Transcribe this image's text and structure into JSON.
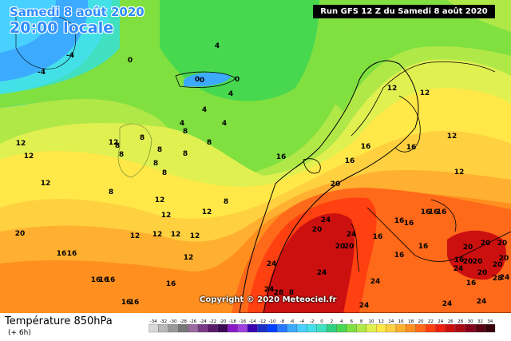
{
  "title": {
    "date": "Samedi 8 août 2020",
    "time": "20:00 locale"
  },
  "run_label": "Run GFS 12 Z du Samedi 8 août 2020",
  "copyright": "Copyright © 2020 Meteociel.fr",
  "footer": {
    "parameter": "Température 850hPa",
    "step": "(+ 6h)"
  },
  "legend": {
    "ticks": [
      "-34",
      "-32",
      "-30",
      "-28",
      "-26",
      "-24",
      "-22",
      "-20",
      "-18",
      "-16",
      "-14",
      "-12",
      "-10",
      "-8",
      "-6",
      "-4",
      "-2",
      "0",
      "2",
      "4",
      "6",
      "8",
      "10",
      "12",
      "14",
      "16",
      "18",
      "20",
      "22",
      "24",
      "26",
      "28",
      "30",
      "32",
      "34"
    ],
    "colors": [
      "#d8d8d8",
      "#b8b8b8",
      "#989898",
      "#787878",
      "#9a6aa0",
      "#7a3a86",
      "#5a1a6a",
      "#3a0a54",
      "#8a18c8",
      "#a040e0",
      "#3a00b0",
      "#1a30c8",
      "#0040ff",
      "#2878ff",
      "#3caaff",
      "#48d0ff",
      "#44e0e8",
      "#40e0c0",
      "#30d080",
      "#48d850",
      "#80e040",
      "#b0e848",
      "#e0f050",
      "#ffe848",
      "#ffd040",
      "#ffb030",
      "#ff9020",
      "#ff6a1a",
      "#ff4010",
      "#ee2010",
      "#cc1010",
      "#aa0a14",
      "#86001c",
      "#5a0012",
      "#3a000a"
    ]
  },
  "isotherm_labels": [
    "-4",
    "-4",
    "4",
    "4",
    "4",
    "0",
    "0",
    "0",
    "0",
    "4",
    "4",
    "8",
    "8",
    "8",
    "8",
    "8",
    "8",
    "8",
    "8",
    "8",
    "8",
    "8",
    "12",
    "12",
    "12",
    "12",
    "12",
    "12",
    "12",
    "12",
    "12",
    "12",
    "12",
    "12",
    "12",
    "12",
    "12",
    "16",
    "16",
    "16",
    "16",
    "16",
    "16",
    "16",
    "16",
    "16",
    "16",
    "16",
    "16",
    "16",
    "16",
    "16",
    "16",
    "16",
    "16",
    "16",
    "16",
    "16",
    "16",
    "20",
    "20",
    "20",
    "20",
    "20",
    "20",
    "20",
    "20",
    "20",
    "20",
    "20",
    "20",
    "20",
    "24",
    "24",
    "24",
    "24",
    "24",
    "24",
    "24",
    "24",
    "24",
    "24",
    "28",
    "24",
    "28",
    "8",
    "12"
  ]
}
